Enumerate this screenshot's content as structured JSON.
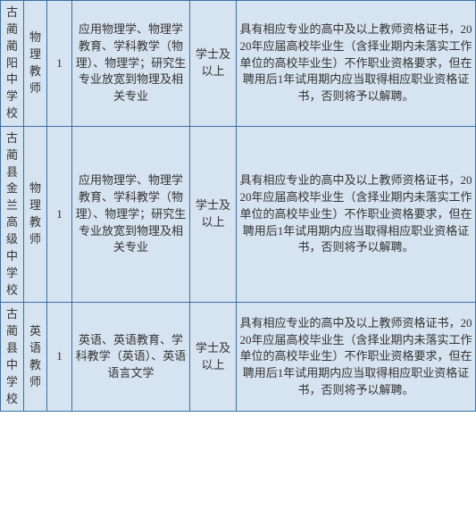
{
  "rows": [
    {
      "school": "古蔺蔺阳中学校",
      "subject": "物理教师",
      "count": "1",
      "major": "应用物理学、物理学教育、学科教学（物理）、物理学；研究生专业放宽到物理及相关专业",
      "degree": "学士及以上",
      "requirement": "具有相应专业的高中及以上教师资格证书，2020年应届高校毕业生（含择业期内未落实工作单位的高校毕业生）不作职业资格要求，但在聘用后1年试用期内应当取得相应职业资格证书，否则将予以解聘。"
    },
    {
      "school": "古蔺县金兰高级中学校",
      "subject": "物理教师",
      "count": "1",
      "major": "应用物理学、物理学教育、学科教学（物理）、物理学；研究生专业放宽到物理及相关专业",
      "degree": "学士及以上",
      "requirement": "具有相应专业的高中及以上教师资格证书，2020年应届高校毕业生（含择业期内未落实工作单位的高校毕业生）不作职业资格要求，但在聘用后1年试用期内应当取得相应职业资格证书，否则将予以解聘。"
    },
    {
      "school": "古蔺县中学校",
      "subject": "英语教师",
      "count": "1",
      "major": "英语、英语教育、学科教学（英语）、英语语言文学",
      "degree": "学士及以上",
      "requirement": "具有相应专业的高中及以上教师资格证书，2020年应届高校毕业生（含择业期内未落实工作单位的高校毕业生）不作职业资格要求，但在聘用后1年试用期内应当取得相应职业资格证书，否则将予以解聘。"
    }
  ]
}
